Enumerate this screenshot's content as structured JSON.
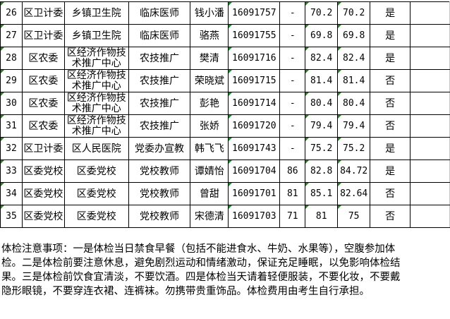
{
  "rows": [
    {
      "no": "26",
      "dept": "区卫计委",
      "unit": "乡镇卫生院",
      "post": "临床医师",
      "name": "钱小潘",
      "id": "16091757",
      "s1": "-",
      "s2": "70.2",
      "total": "70.2",
      "pass": "是"
    },
    {
      "no": "27",
      "dept": "区卫计委",
      "unit": "乡镇卫生院",
      "post": "临床医师",
      "name": "骆燕",
      "id": "16091755",
      "s1": "-",
      "s2": "69.8",
      "total": "69.8",
      "pass": "是"
    },
    {
      "no": "28",
      "dept": "区农委",
      "unit": "区经济作物技术推广中心",
      "post": "农技推广",
      "name": "樊清",
      "id": "16091716",
      "s1": "-",
      "s2": "82.4",
      "total": "82.4",
      "pass": "是"
    },
    {
      "no": "29",
      "dept": "区农委",
      "unit": "区经济作物技术推广中心",
      "post": "农技推广",
      "name": "荣晓斌",
      "id": "16091715",
      "s1": "-",
      "s2": "81.4",
      "total": "81.4",
      "pass": "否"
    },
    {
      "no": "30",
      "dept": "区农委",
      "unit": "区经济作物技术推广中心",
      "post": "农技推广",
      "name": "彭艳",
      "id": "16091714",
      "s1": "-",
      "s2": "80.4",
      "total": "80.4",
      "pass": "否"
    },
    {
      "no": "31",
      "dept": "区农委",
      "unit": "区经济作物技术推广中心",
      "post": "农技推广",
      "name": "张娇",
      "id": "16091720",
      "s1": "-",
      "s2": "79.4",
      "total": "79.4",
      "pass": "否"
    },
    {
      "no": "32",
      "dept": "区卫计委",
      "unit": "区人民医院",
      "post": "党委办宣教",
      "name": "韩飞飞",
      "id": "16091743",
      "s1": "-",
      "s2": "75.2",
      "total": "75.2",
      "pass": "是"
    },
    {
      "no": "33",
      "dept": "区委党校",
      "unit": "区委党校",
      "post": "党校教师",
      "name": "谭婧怡",
      "id": "16091704",
      "s1": "86",
      "s2": "82.8",
      "total": "84.72",
      "pass": "是"
    },
    {
      "no": "34",
      "dept": "区委党校",
      "unit": "区委党校",
      "post": "党校教师",
      "name": "曾甜",
      "id": "16091701",
      "s1": "81",
      "s2": "85.1",
      "total": "82.64",
      "pass": "否"
    },
    {
      "no": "35",
      "dept": "区委党校",
      "unit": "区委党校",
      "post": "党校教师",
      "name": "宋德清",
      "id": "16091703",
      "s1": "71",
      "s2": "81",
      "total": "75",
      "pass": "否"
    }
  ],
  "notes": {
    "lines": [
      "体检注意事项：一是体检当日禁食早餐（包括不能进食水、牛奶、水果等），空腹参加体",
      "检。二是体检前要注意休息，避免剧烈运动和情绪激动，保证充足睡眠，以免影响体检结",
      "果。三是体检前饮食宜清淡，不要饮酒。四是体检当天请着轻便服装，不要化妆，不要戴",
      "隐形眼镜，不要穿连衣裙、连裤袜。勿携带贵重饰品。体检费用由考生自行承担。"
    ]
  },
  "colors": {
    "grid": "#000000",
    "error_marker": "#1a8a1a"
  }
}
